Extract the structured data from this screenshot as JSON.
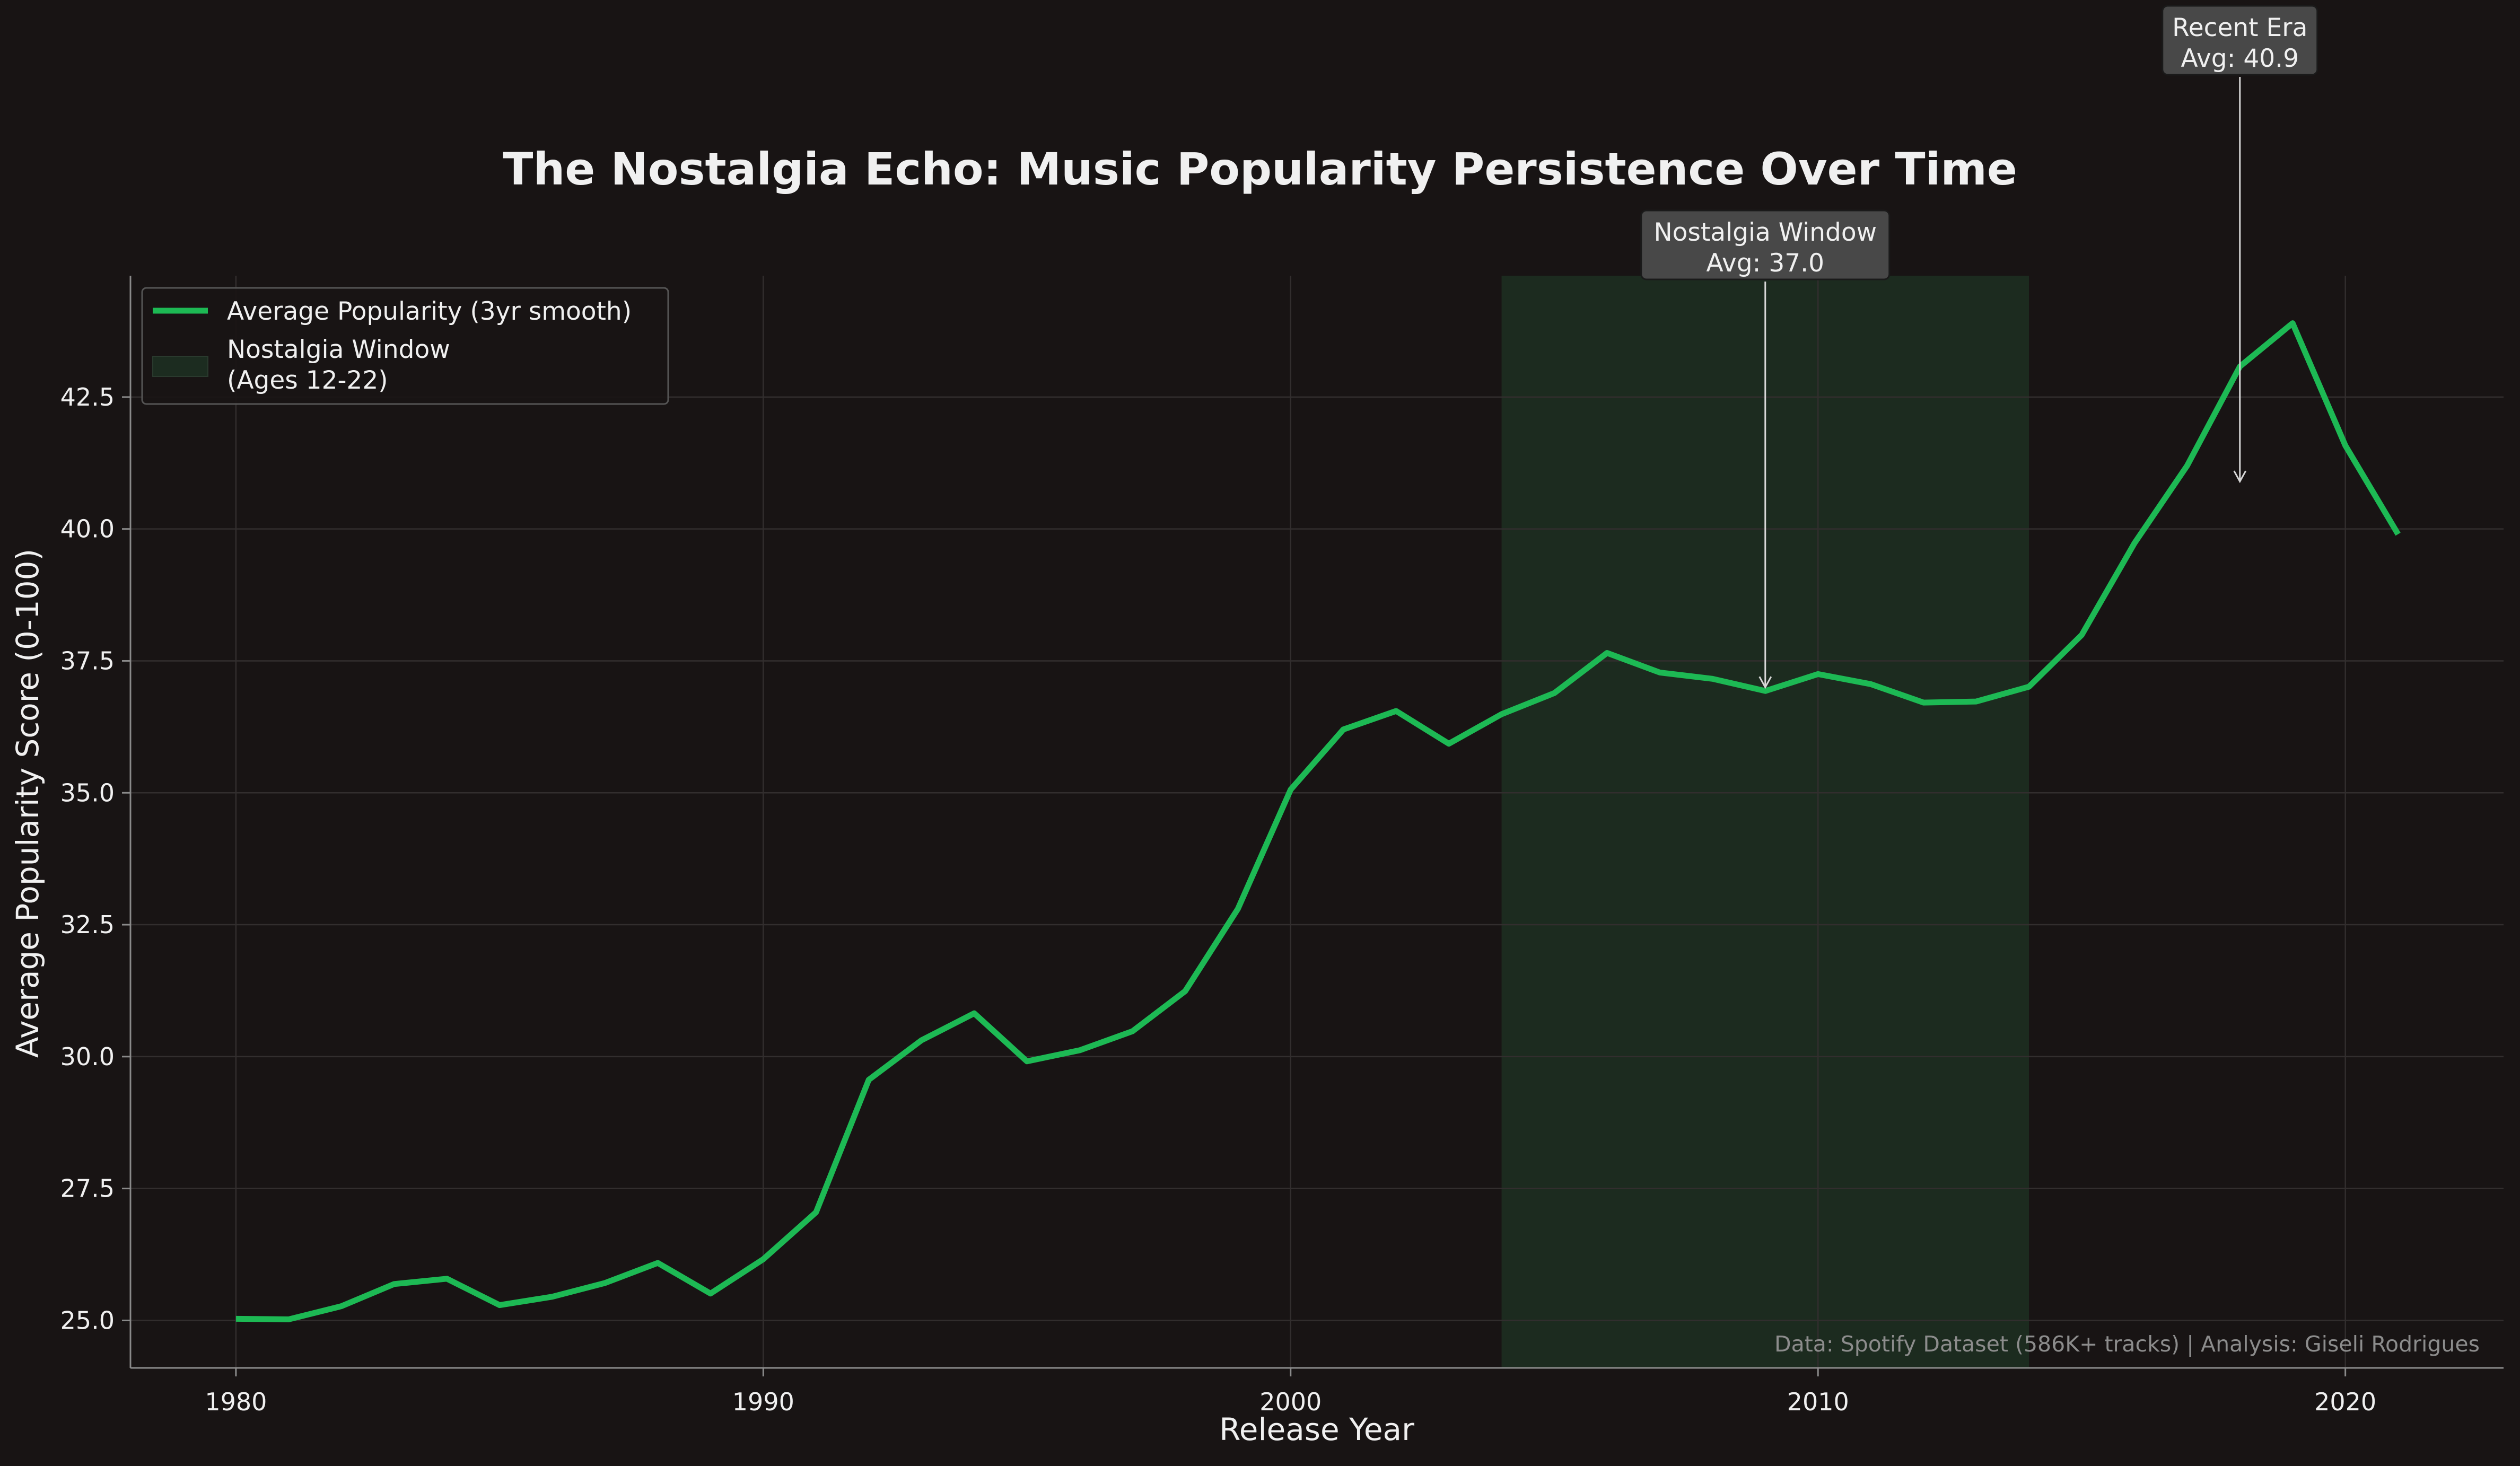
{
  "chart_data": {
    "type": "line",
    "title": "The Nostalgia Echo: Music Popularity Persistence Over Time",
    "xlabel": "Release Year",
    "ylabel": "Average Popularity Score (0-100)",
    "xlim": [
      1978,
      2023
    ],
    "ylim": [
      24.1,
      44.8
    ],
    "xticks": [
      1980,
      1990,
      2000,
      2010,
      2020
    ],
    "yticks": [
      25.0,
      27.5,
      30.0,
      32.5,
      35.0,
      37.5,
      40.0,
      42.5
    ],
    "grid": true,
    "legend_position": "top-left",
    "series": [
      {
        "name": "Average Popularity (3yr smooth)",
        "color": "#1db954",
        "x": [
          1980,
          1981,
          1982,
          1983,
          1984,
          1985,
          1986,
          1987,
          1988,
          1989,
          1990,
          1991,
          1992,
          1993,
          1994,
          1995,
          1996,
          1997,
          1998,
          1999,
          2000,
          2001,
          2002,
          2003,
          2004,
          2005,
          2006,
          2007,
          2008,
          2009,
          2010,
          2011,
          2012,
          2013,
          2014,
          2015,
          2016,
          2017,
          2018,
          2019,
          2020,
          2021
        ],
        "y": [
          25.03,
          25.02,
          25.27,
          25.69,
          25.79,
          25.29,
          25.45,
          25.71,
          26.09,
          25.51,
          26.16,
          27.05,
          29.56,
          30.31,
          30.82,
          29.91,
          30.12,
          30.48,
          31.24,
          32.8,
          35.06,
          36.2,
          36.55,
          35.93,
          36.49,
          36.89,
          37.65,
          37.28,
          37.16,
          36.93,
          37.25,
          37.06,
          36.71,
          36.73,
          37.01,
          37.99,
          39.73,
          41.2,
          43.08,
          43.9,
          41.58,
          39.9
        ]
      }
    ],
    "shaded_region": {
      "name": "Nostalgia Window\n(Ages 12-22)",
      "x_start": 2004,
      "x_end": 2014,
      "color": "#1c2c20"
    },
    "annotations": [
      {
        "name": "nostalgia-window",
        "text": "Nostalgia Window\nAvg: 37.0",
        "x": 2009,
        "y": 37.0,
        "text_y": 45.0
      },
      {
        "name": "recent-era",
        "text": "Recent Era\nAvg: 40.9",
        "x": 2018,
        "y": 40.9,
        "text_y": 48.9
      }
    ],
    "footnote": "Data: Spotify Dataset (586K+ tracks) | Analysis: Giseli Rodrigues"
  },
  "colors": {
    "background": "#181414",
    "grid": "#322e2e",
    "axis": "#8a8a8a",
    "text": "#f0f0f0",
    "footnote": "#8c8c8c",
    "annotation_box": "#484848"
  }
}
